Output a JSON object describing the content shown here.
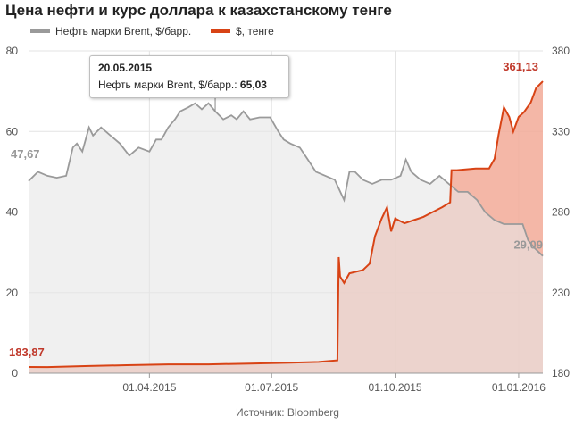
{
  "title": "Цена нефти и курс доллара к казахстанскому тенге",
  "legend": {
    "oil": "Нефть марки Brent, $/барр.",
    "usd": "$, тенге"
  },
  "source": "Источник: Bloomberg",
  "tooltip": {
    "date": "20.05.2015",
    "label": "Нефть марки Brent, $/барр.:",
    "value": "65,03"
  },
  "callouts": {
    "oil_start": "47,67",
    "oil_end": "29,09",
    "usd_start": "183,87",
    "usd_end": "361,13"
  },
  "colors": {
    "oil_line": "#9a9a9a",
    "oil_fill": "#e6e6e6",
    "usd_line": "#d84315",
    "usd_fill": "#f2aa98",
    "usd_label": "#c0392b",
    "oil_label": "#999999"
  },
  "chart_data": {
    "type": "area",
    "x_range": [
      "2015-01-01",
      "2016-01-19"
    ],
    "x_ticks": [
      {
        "date": "2015-04-01",
        "label": "01.04.2015"
      },
      {
        "date": "2015-07-01",
        "label": "01.07.2015"
      },
      {
        "date": "2015-10-01",
        "label": "01.10.2015"
      },
      {
        "date": "2016-01-01",
        "label": "01.01.2016"
      }
    ],
    "y_left": {
      "min": 0,
      "max": 80,
      "ticks": [
        0,
        20,
        40,
        60,
        80
      ]
    },
    "y_right": {
      "min": 180,
      "max": 380,
      "ticks": [
        180,
        230,
        280,
        330,
        380
      ]
    },
    "grid": true,
    "series": [
      {
        "name": "Нефть марки Brent, $/барр.",
        "axis": "left",
        "points": [
          [
            "2015-01-01",
            47.7
          ],
          [
            "2015-01-08",
            50
          ],
          [
            "2015-01-15",
            49
          ],
          [
            "2015-01-22",
            48.5
          ],
          [
            "2015-01-29",
            49
          ],
          [
            "2015-02-03",
            56
          ],
          [
            "2015-02-06",
            57
          ],
          [
            "2015-02-10",
            55
          ],
          [
            "2015-02-15",
            61
          ],
          [
            "2015-02-18",
            59
          ],
          [
            "2015-02-24",
            61
          ],
          [
            "2015-03-03",
            59
          ],
          [
            "2015-03-10",
            57
          ],
          [
            "2015-03-17",
            54
          ],
          [
            "2015-03-24",
            56
          ],
          [
            "2015-04-01",
            55
          ],
          [
            "2015-04-06",
            58
          ],
          [
            "2015-04-10",
            58
          ],
          [
            "2015-04-15",
            61
          ],
          [
            "2015-04-20",
            63
          ],
          [
            "2015-04-24",
            65
          ],
          [
            "2015-04-30",
            66
          ],
          [
            "2015-05-05",
            67
          ],
          [
            "2015-05-10",
            65.5
          ],
          [
            "2015-05-15",
            67
          ],
          [
            "2015-05-20",
            65.03
          ],
          [
            "2015-05-26",
            63
          ],
          [
            "2015-06-01",
            64
          ],
          [
            "2015-06-05",
            63
          ],
          [
            "2015-06-10",
            65
          ],
          [
            "2015-06-15",
            63
          ],
          [
            "2015-06-22",
            63.5
          ],
          [
            "2015-06-30",
            63.5
          ],
          [
            "2015-07-06",
            60
          ],
          [
            "2015-07-10",
            58
          ],
          [
            "2015-07-15",
            57
          ],
          [
            "2015-07-22",
            56
          ],
          [
            "2015-07-28",
            53
          ],
          [
            "2015-08-03",
            50
          ],
          [
            "2015-08-10",
            49
          ],
          [
            "2015-08-17",
            48
          ],
          [
            "2015-08-24",
            43
          ],
          [
            "2015-08-28",
            50
          ],
          [
            "2015-09-01",
            50
          ],
          [
            "2015-09-07",
            48
          ],
          [
            "2015-09-14",
            47
          ],
          [
            "2015-09-21",
            48
          ],
          [
            "2015-09-28",
            48
          ],
          [
            "2015-10-05",
            49
          ],
          [
            "2015-10-09",
            53
          ],
          [
            "2015-10-13",
            50
          ],
          [
            "2015-10-20",
            48
          ],
          [
            "2015-10-27",
            47
          ],
          [
            "2015-11-03",
            49
          ],
          [
            "2015-11-10",
            47
          ],
          [
            "2015-11-17",
            45
          ],
          [
            "2015-11-24",
            45
          ],
          [
            "2015-12-01",
            43
          ],
          [
            "2015-12-07",
            40
          ],
          [
            "2015-12-14",
            38
          ],
          [
            "2015-12-21",
            37
          ],
          [
            "2015-12-28",
            37
          ],
          [
            "2016-01-04",
            37
          ],
          [
            "2016-01-08",
            33
          ],
          [
            "2016-01-13",
            31
          ],
          [
            "2016-01-19",
            29.09
          ]
        ]
      },
      {
        "name": "$, тенге",
        "axis": "right",
        "points": [
          [
            "2015-01-01",
            183.87
          ],
          [
            "2015-01-15",
            183.8
          ],
          [
            "2015-02-15",
            184.5
          ],
          [
            "2015-03-15",
            185
          ],
          [
            "2015-04-15",
            185.5
          ],
          [
            "2015-05-15",
            185.5
          ],
          [
            "2015-06-15",
            186
          ],
          [
            "2015-07-15",
            186.5
          ],
          [
            "2015-08-05",
            187
          ],
          [
            "2015-08-19",
            188
          ],
          [
            "2015-08-20",
            252
          ],
          [
            "2015-08-21",
            240
          ],
          [
            "2015-08-24",
            236
          ],
          [
            "2015-08-28",
            242
          ],
          [
            "2015-09-07",
            244
          ],
          [
            "2015-09-12",
            248
          ],
          [
            "2015-09-16",
            265
          ],
          [
            "2015-09-21",
            276
          ],
          [
            "2015-09-25",
            283
          ],
          [
            "2015-09-28",
            268
          ],
          [
            "2015-10-01",
            276
          ],
          [
            "2015-10-08",
            273
          ],
          [
            "2015-10-15",
            275
          ],
          [
            "2015-10-22",
            277
          ],
          [
            "2015-10-29",
            280
          ],
          [
            "2015-11-05",
            283
          ],
          [
            "2015-11-11",
            286
          ],
          [
            "2015-11-12",
            306
          ],
          [
            "2015-11-16",
            306
          ],
          [
            "2015-11-30",
            307
          ],
          [
            "2015-12-10",
            307
          ],
          [
            "2015-12-14",
            313
          ],
          [
            "2015-12-17",
            328
          ],
          [
            "2015-12-21",
            345
          ],
          [
            "2015-12-25",
            339
          ],
          [
            "2015-12-28",
            330
          ],
          [
            "2016-01-01",
            339
          ],
          [
            "2016-01-05",
            342
          ],
          [
            "2016-01-10",
            348
          ],
          [
            "2016-01-14",
            357
          ],
          [
            "2016-01-19",
            361.13
          ]
        ]
      }
    ]
  }
}
